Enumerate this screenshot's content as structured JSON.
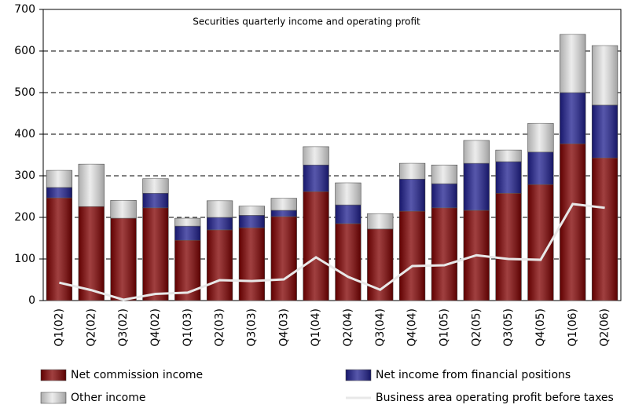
{
  "chart_data": {
    "type": "bar",
    "stacked": true,
    "title": "Securities quarterly income and operating profit",
    "categories": [
      "Q1(02)",
      "Q2(02)",
      "Q3(02)",
      "Q4(02)",
      "Q1(03)",
      "Q2(03)",
      "Q3(03)",
      "Q4(03)",
      "Q1(04)",
      "Q2(04)",
      "Q3(04)",
      "Q4(04)",
      "Q1(05)",
      "Q2(05)",
      "Q3(05)",
      "Q4(05)",
      "Q1(06)",
      "Q2(06)"
    ],
    "series": [
      {
        "name": "Net commission income",
        "color": "#800000",
        "type": "bar",
        "values": [
          247,
          226,
          198,
          223,
          145,
          170,
          175,
          202,
          262,
          185,
          172,
          215,
          223,
          217,
          258,
          279,
          377,
          343
        ]
      },
      {
        "name": "Net income from financial positions",
        "color": "#1f1f8f",
        "type": "bar",
        "values": [
          25,
          0,
          0,
          35,
          34,
          30,
          30,
          15,
          64,
          45,
          0,
          77,
          58,
          113,
          76,
          78,
          123,
          127
        ]
      },
      {
        "name": "Other income",
        "color": "#e6e6e6",
        "type": "bar",
        "values": [
          41,
          102,
          43,
          35,
          19,
          40,
          22,
          29,
          44,
          53,
          37,
          38,
          45,
          55,
          28,
          69,
          140,
          143
        ]
      },
      {
        "name": "Business area operating profit before taxes",
        "color": "#e8e8e8",
        "type": "line",
        "values": [
          43,
          25,
          2,
          16,
          19,
          49,
          47,
          51,
          104,
          57,
          26,
          83,
          85,
          109,
          100,
          98,
          232,
          223
        ]
      }
    ],
    "ylim": [
      0,
      700
    ],
    "yticks": [
      0,
      100,
      200,
      300,
      400,
      500,
      600,
      700
    ],
    "grid": true
  }
}
